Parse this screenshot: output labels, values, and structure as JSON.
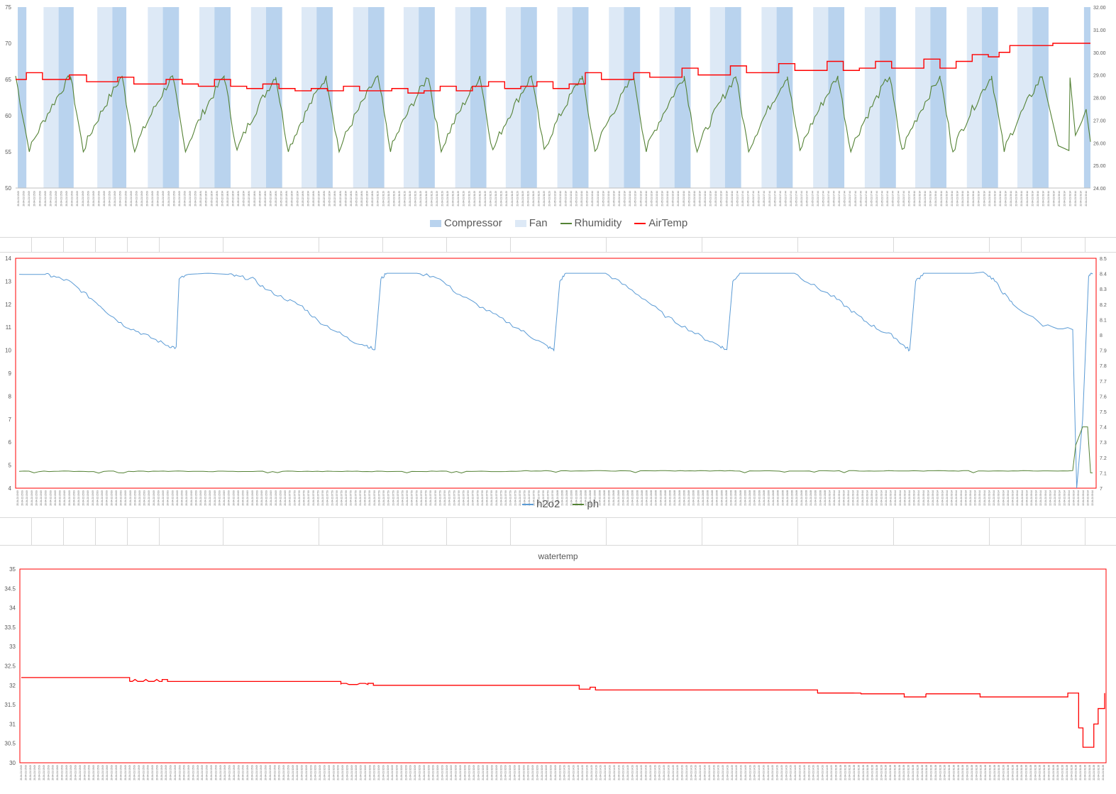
{
  "chart_data": [
    {
      "type": "line",
      "title": "",
      "y_left": {
        "ylim": [
          50,
          75
        ],
        "ticks": [
          "50",
          "55",
          "60",
          "65",
          "70",
          "75"
        ]
      },
      "y_right": {
        "ylim": [
          24,
          32
        ],
        "ticks": [
          "24.00",
          "25.00",
          "26.00",
          "27.00",
          "28.00",
          "29.00",
          "30.00",
          "31.00",
          "32.00"
        ]
      },
      "x_tick_labels": [
        "20-04-21 15:09",
        "20-05-22 18:34",
        "21-04-21 01:29",
        "21-05-21 10:14",
        "21-05-21 17:44",
        "22-04-21 09:14"
      ],
      "series": [
        {
          "name": "Compressor",
          "kind": "on-off bars",
          "color": "#b9d3ee",
          "axis": "left",
          "on_periods": [
            [
              0.2,
              1
            ],
            [
              4,
              5.4
            ],
            [
              9,
              10.3
            ],
            [
              13.7,
              15.2
            ],
            [
              18.5,
              20
            ],
            [
              23.3,
              24.8
            ],
            [
              28,
              29.5
            ],
            [
              32.8,
              34.3
            ],
            [
              37.5,
              39
            ],
            [
              42.3,
              43.8
            ],
            [
              47,
              48.5
            ],
            [
              51.8,
              53.3
            ],
            [
              56.6,
              58.1
            ],
            [
              61.3,
              62.8
            ],
            [
              66,
              67.5
            ],
            [
              70.8,
              72.3
            ],
            [
              75.6,
              77.1
            ],
            [
              80.4,
              81.9
            ],
            [
              85.1,
              86.6
            ],
            [
              89.9,
              91.4
            ],
            [
              94.6,
              96.1
            ],
            [
              99.4,
              100
            ]
          ]
        },
        {
          "name": "Fan",
          "kind": "on-off bars",
          "color": "#dde9f6",
          "axis": "left",
          "on_periods": [
            [
              2.6,
              4
            ],
            [
              7.6,
              9
            ],
            [
              12.3,
              13.7
            ],
            [
              17.1,
              18.5
            ],
            [
              21.9,
              23.3
            ],
            [
              26.6,
              28
            ],
            [
              31.4,
              32.8
            ],
            [
              36.1,
              37.5
            ],
            [
              40.9,
              42.3
            ],
            [
              45.6,
              47
            ],
            [
              50.4,
              51.8
            ],
            [
              55.2,
              56.6
            ],
            [
              59.9,
              61.3
            ],
            [
              64.6,
              66
            ],
            [
              69.4,
              70.8
            ],
            [
              74.2,
              75.6
            ],
            [
              79,
              80.4
            ],
            [
              83.7,
              85.1
            ],
            [
              88.5,
              89.9
            ],
            [
              93.2,
              94.6
            ]
          ]
        },
        {
          "name": "Rhumidity",
          "color": "#548235",
          "axis": "left",
          "cycle_peaks_pct": [
            0,
            5.1,
            9.9,
            14.6,
            19.4,
            24.2,
            28.9,
            33.7,
            38.4,
            43.2,
            48,
            52.7,
            57.5,
            62.2,
            67,
            71.8,
            76.5,
            81.3,
            86,
            90.8,
            95.5
          ],
          "min": 55,
          "max": 65.5,
          "tail": [
            [
              95.5,
              65.5
            ],
            [
              97,
              56
            ],
            [
              98,
              55.3
            ],
            [
              98.1,
              65
            ],
            [
              98.6,
              57
            ],
            [
              99.2,
              59.5
            ],
            [
              99.6,
              61
            ],
            [
              100,
              56.5
            ]
          ]
        },
        {
          "name": "AirTemp",
          "color": "#ff0000",
          "axis": "right",
          "points": [
            [
              0,
              28.8
            ],
            [
              1,
              29.1
            ],
            [
              2.5,
              28.8
            ],
            [
              4,
              28.8
            ],
            [
              5,
              29.0
            ],
            [
              6.6,
              28.7
            ],
            [
              8,
              28.7
            ],
            [
              9.5,
              28.9
            ],
            [
              11,
              28.6
            ],
            [
              12.5,
              28.6
            ],
            [
              14,
              28.8
            ],
            [
              15.5,
              28.6
            ],
            [
              17,
              28.5
            ],
            [
              18.5,
              28.8
            ],
            [
              20,
              28.5
            ],
            [
              21.5,
              28.4
            ],
            [
              23,
              28.6
            ],
            [
              24.5,
              28.4
            ],
            [
              26,
              28.3
            ],
            [
              27.5,
              28.4
            ],
            [
              29,
              28.3
            ],
            [
              30.5,
              28.5
            ],
            [
              32,
              28.3
            ],
            [
              33.5,
              28.3
            ],
            [
              35,
              28.4
            ],
            [
              36.5,
              28.2
            ],
            [
              38,
              28.3
            ],
            [
              39.5,
              28.5
            ],
            [
              41,
              28.3
            ],
            [
              42.5,
              28.5
            ],
            [
              44,
              28.7
            ],
            [
              45.5,
              28.4
            ],
            [
              47,
              28.5
            ],
            [
              48.5,
              28.7
            ],
            [
              50,
              28.4
            ],
            [
              51.5,
              28.6
            ],
            [
              53,
              29.1
            ],
            [
              54.5,
              28.8
            ],
            [
              56,
              28.8
            ],
            [
              57.5,
              29.1
            ],
            [
              59,
              28.9
            ],
            [
              60.5,
              28.9
            ],
            [
              62,
              29.3
            ],
            [
              63.5,
              29.0
            ],
            [
              65,
              29.0
            ],
            [
              66.5,
              29.4
            ],
            [
              68,
              29.1
            ],
            [
              69.5,
              29.1
            ],
            [
              71,
              29.5
            ],
            [
              72.5,
              29.2
            ],
            [
              74,
              29.2
            ],
            [
              75.5,
              29.6
            ],
            [
              77,
              29.2
            ],
            [
              78.5,
              29.3
            ],
            [
              80,
              29.6
            ],
            [
              81.5,
              29.3
            ],
            [
              83,
              29.3
            ],
            [
              84.5,
              29.7
            ],
            [
              86,
              29.3
            ],
            [
              87.5,
              29.6
            ],
            [
              89,
              29.9
            ],
            [
              90.5,
              29.8
            ],
            [
              91.5,
              30.0
            ],
            [
              92.5,
              30.3
            ],
            [
              93.5,
              30.3
            ],
            [
              95,
              30.3
            ],
            [
              96.5,
              30.4
            ],
            [
              98,
              30.4
            ],
            [
              100,
              30.4
            ]
          ]
        }
      ],
      "legend_position": "bottom"
    },
    {
      "type": "line",
      "title": "",
      "y_left": {
        "ylim": [
          4,
          14
        ],
        "ticks": [
          "4",
          "5",
          "6",
          "7",
          "8",
          "9",
          "10",
          "11",
          "12",
          "13",
          "14"
        ]
      },
      "y_right": {
        "ylim": [
          7,
          8.5
        ],
        "ticks": [
          "7",
          "7.1",
          "7.2",
          "7.3",
          "7.4",
          "7.5",
          "7.6",
          "7.7",
          "7.8",
          "7.9",
          "8",
          "8.1",
          "8.2",
          "8.3",
          "8.4",
          "8.5"
        ]
      },
      "x_tick_labels": [
        "20-04-21 15:09",
        "21-04-21 07:59",
        "21-04-21 20:08",
        "22-04-21 09:14"
      ],
      "series": [
        {
          "name": "h2o2",
          "color": "#5b9bd5",
          "axis": "left",
          "points": [
            [
              0,
              13.3
            ],
            [
              2.6,
              13.3
            ],
            [
              3.5,
              13.2
            ],
            [
              5,
              13.0
            ],
            [
              6.5,
              12.5
            ],
            [
              8,
              12.0
            ],
            [
              9,
              11.6
            ],
            [
              10.5,
              11.1
            ],
            [
              12,
              10.8
            ],
            [
              13.5,
              10.5
            ],
            [
              15,
              10.2
            ],
            [
              15.8,
              10.1
            ],
            [
              16.1,
              13.1
            ],
            [
              17,
              13.3
            ],
            [
              19,
              13.35
            ],
            [
              21,
              13.3
            ],
            [
              22,
              13.2
            ],
            [
              23.5,
              13.1
            ],
            [
              25,
              12.6
            ],
            [
              27,
              12.2
            ],
            [
              28.5,
              11.9
            ],
            [
              30,
              11.3
            ],
            [
              32,
              10.8
            ],
            [
              33.5,
              10.4
            ],
            [
              35,
              10.2
            ],
            [
              35.8,
              10.0
            ],
            [
              36.4,
              13.1
            ],
            [
              37,
              13.35
            ],
            [
              40,
              13.35
            ],
            [
              42,
              13.2
            ],
            [
              44,
              12.5
            ],
            [
              46,
              12.0
            ],
            [
              48,
              11.5
            ],
            [
              50,
              11.0
            ],
            [
              51.5,
              10.6
            ],
            [
              53,
              10.2
            ],
            [
              53.8,
              10.0
            ],
            [
              54.4,
              13.0
            ],
            [
              55,
              13.35
            ],
            [
              59,
              13.35
            ],
            [
              61,
              12.8
            ],
            [
              63,
              12.2
            ],
            [
              65,
              11.5
            ],
            [
              67,
              11.0
            ],
            [
              69,
              10.5
            ],
            [
              70.5,
              10.2
            ],
            [
              71.2,
              10.0
            ],
            [
              71.8,
              13.0
            ],
            [
              72.5,
              13.35
            ],
            [
              78,
              13.35
            ],
            [
              80,
              12.8
            ],
            [
              82,
              12.3
            ],
            [
              83.5,
              11.8
            ],
            [
              85,
              11.3
            ],
            [
              86.5,
              10.9
            ],
            [
              88,
              10.6
            ],
            [
              89,
              10.2
            ],
            [
              89.6,
              10.0
            ],
            [
              90.2,
              13.0
            ],
            [
              91,
              13.35
            ],
            [
              96,
              13.35
            ],
            [
              97,
              13.4
            ],
            [
              98,
              13.1
            ],
            [
              99,
              12.5
            ],
            [
              100,
              12.0
            ]
          ],
          "tail": [
            [
              100,
              12.0
            ],
            [
              103,
              11.1
            ],
            [
              106,
              10.9
            ],
            [
              106.4,
              4.0
            ],
            [
              107,
              7.0
            ],
            [
              107.6,
              13.2
            ],
            [
              108,
              13.35
            ]
          ]
        },
        {
          "name": "ph",
          "color": "#548235",
          "axis": "right",
          "base": 7.11,
          "tail": [
            [
              106,
              7.11
            ],
            [
              106.3,
              7.28
            ],
            [
              107,
              7.4
            ],
            [
              107.5,
              7.4
            ],
            [
              107.8,
              7.1
            ],
            [
              108,
              7.1
            ]
          ]
        }
      ],
      "legend_position": "bottom"
    },
    {
      "type": "line",
      "title": "watertemp",
      "ylim": [
        30,
        35
      ],
      "y_ticks": [
        "30",
        "30.5",
        "31",
        "31.5",
        "32",
        "32.5",
        "33",
        "33.5",
        "34",
        "34.5",
        "35"
      ],
      "x_tick_labels": [
        "20-04-21 15:09",
        "21-04-21 02:09",
        "21-04-21 14:29",
        "22-04-21 01:28"
      ],
      "series": [
        {
          "name": "watertemp",
          "color": "#ff0000",
          "points": [
            [
              0,
              32.2
            ],
            [
              9.5,
              32.2
            ],
            [
              10,
              32.1
            ],
            [
              13,
              32.15
            ],
            [
              13.5,
              32.1
            ],
            [
              29,
              32.1
            ],
            [
              29.5,
              32.02
            ],
            [
              32,
              32.05
            ],
            [
              32.5,
              32.0
            ],
            [
              51,
              32.0
            ],
            [
              51.5,
              31.9
            ],
            [
              52.5,
              31.95
            ],
            [
              53,
              31.88
            ],
            [
              73,
              31.88
            ],
            [
              73.5,
              31.8
            ],
            [
              77,
              31.8
            ],
            [
              77.5,
              31.78
            ],
            [
              81,
              31.78
            ],
            [
              81.5,
              31.7
            ],
            [
              83,
              31.7
            ],
            [
              83.5,
              31.78
            ],
            [
              88,
              31.78
            ],
            [
              88.5,
              31.7
            ],
            [
              96.3,
              31.7
            ],
            [
              96.6,
              31.8
            ],
            [
              97.6,
              30.9
            ],
            [
              98,
              30.4
            ],
            [
              99,
              31.0
            ],
            [
              99.4,
              31.4
            ],
            [
              100,
              31.8
            ]
          ]
        }
      ]
    }
  ]
}
